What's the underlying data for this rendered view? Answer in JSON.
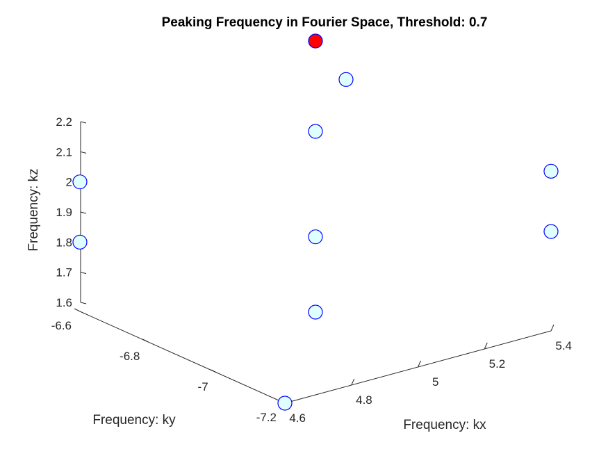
{
  "chart_data": {
    "type": "scatter3d",
    "title": "Peaking Frequency in Fourier Space, Threshold: 0.7",
    "xlabel": "Frequency: kx",
    "ylabel": "Frequency: ky",
    "zlabel": "Frequency: kz",
    "xlim": [
      4.6,
      5.4
    ],
    "ylim": [
      -7.2,
      -6.6
    ],
    "zlim": [
      1.57,
      2.2
    ],
    "xticks": [
      "4.6",
      "4.8",
      "5",
      "5.2",
      "5.4"
    ],
    "yticks": [
      "-6.6",
      "-6.8",
      "-7",
      "-7.2"
    ],
    "zticks": [
      "1.6",
      "1.7",
      "1.8",
      "1.9",
      "2",
      "2.1",
      "2.2"
    ],
    "grid": false,
    "legend": "none",
    "marker_fill": "#e0ffff",
    "marker_edge": "#0000ff",
    "highlight_fill": "#ff0000",
    "points": [
      {
        "x": 4.6,
        "y": -7.2,
        "z": 1.57
      },
      {
        "x": 4.6,
        "y": -6.6,
        "z": 1.8
      },
      {
        "x": 4.6,
        "y": -6.6,
        "z": 2.0
      },
      {
        "x": 5.0,
        "y": -6.9,
        "z": 1.6
      },
      {
        "x": 5.0,
        "y": -6.9,
        "z": 1.85
      },
      {
        "x": 5.0,
        "y": -6.9,
        "z": 2.2
      },
      {
        "x": 5.4,
        "y": -7.2,
        "z": 1.9
      },
      {
        "x": 5.4,
        "y": -7.2,
        "z": 2.1
      },
      {
        "x": 5.4,
        "y": -6.6,
        "z": 2.1
      },
      {
        "x": 5.0,
        "y": -6.9,
        "z": 2.5,
        "highlight": true
      }
    ]
  }
}
